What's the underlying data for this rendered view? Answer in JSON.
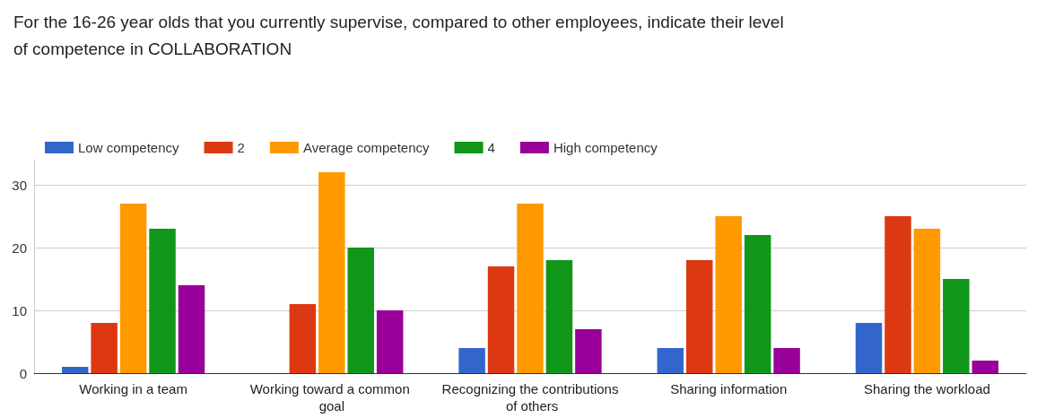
{
  "chart_data": {
    "type": "bar",
    "title": "For the 16-26 year olds that you currently supervise, compared to other employees, indicate their level of competence in COLLABORATION",
    "categories": [
      "Working in a team",
      "Working toward a common goal",
      "Recognizing the contributions of others",
      "Sharing information",
      "Sharing the workload"
    ],
    "series": [
      {
        "name": "Low competency",
        "color": "#3366cc",
        "values": [
          1,
          0,
          4,
          4,
          8
        ]
      },
      {
        "name": "2",
        "color": "#dc3912",
        "values": [
          8,
          11,
          17,
          18,
          25
        ]
      },
      {
        "name": "Average competency",
        "color": "#ff9900",
        "values": [
          27,
          32,
          27,
          25,
          23
        ]
      },
      {
        "name": "4",
        "color": "#109618",
        "values": [
          23,
          20,
          18,
          22,
          15
        ]
      },
      {
        "name": "High competency",
        "color": "#990099",
        "values": [
          14,
          10,
          7,
          4,
          2
        ]
      }
    ],
    "ylim": [
      0,
      34
    ],
    "yticks": [
      0,
      10,
      20,
      30
    ],
    "grid": "y",
    "legend": "top left"
  }
}
